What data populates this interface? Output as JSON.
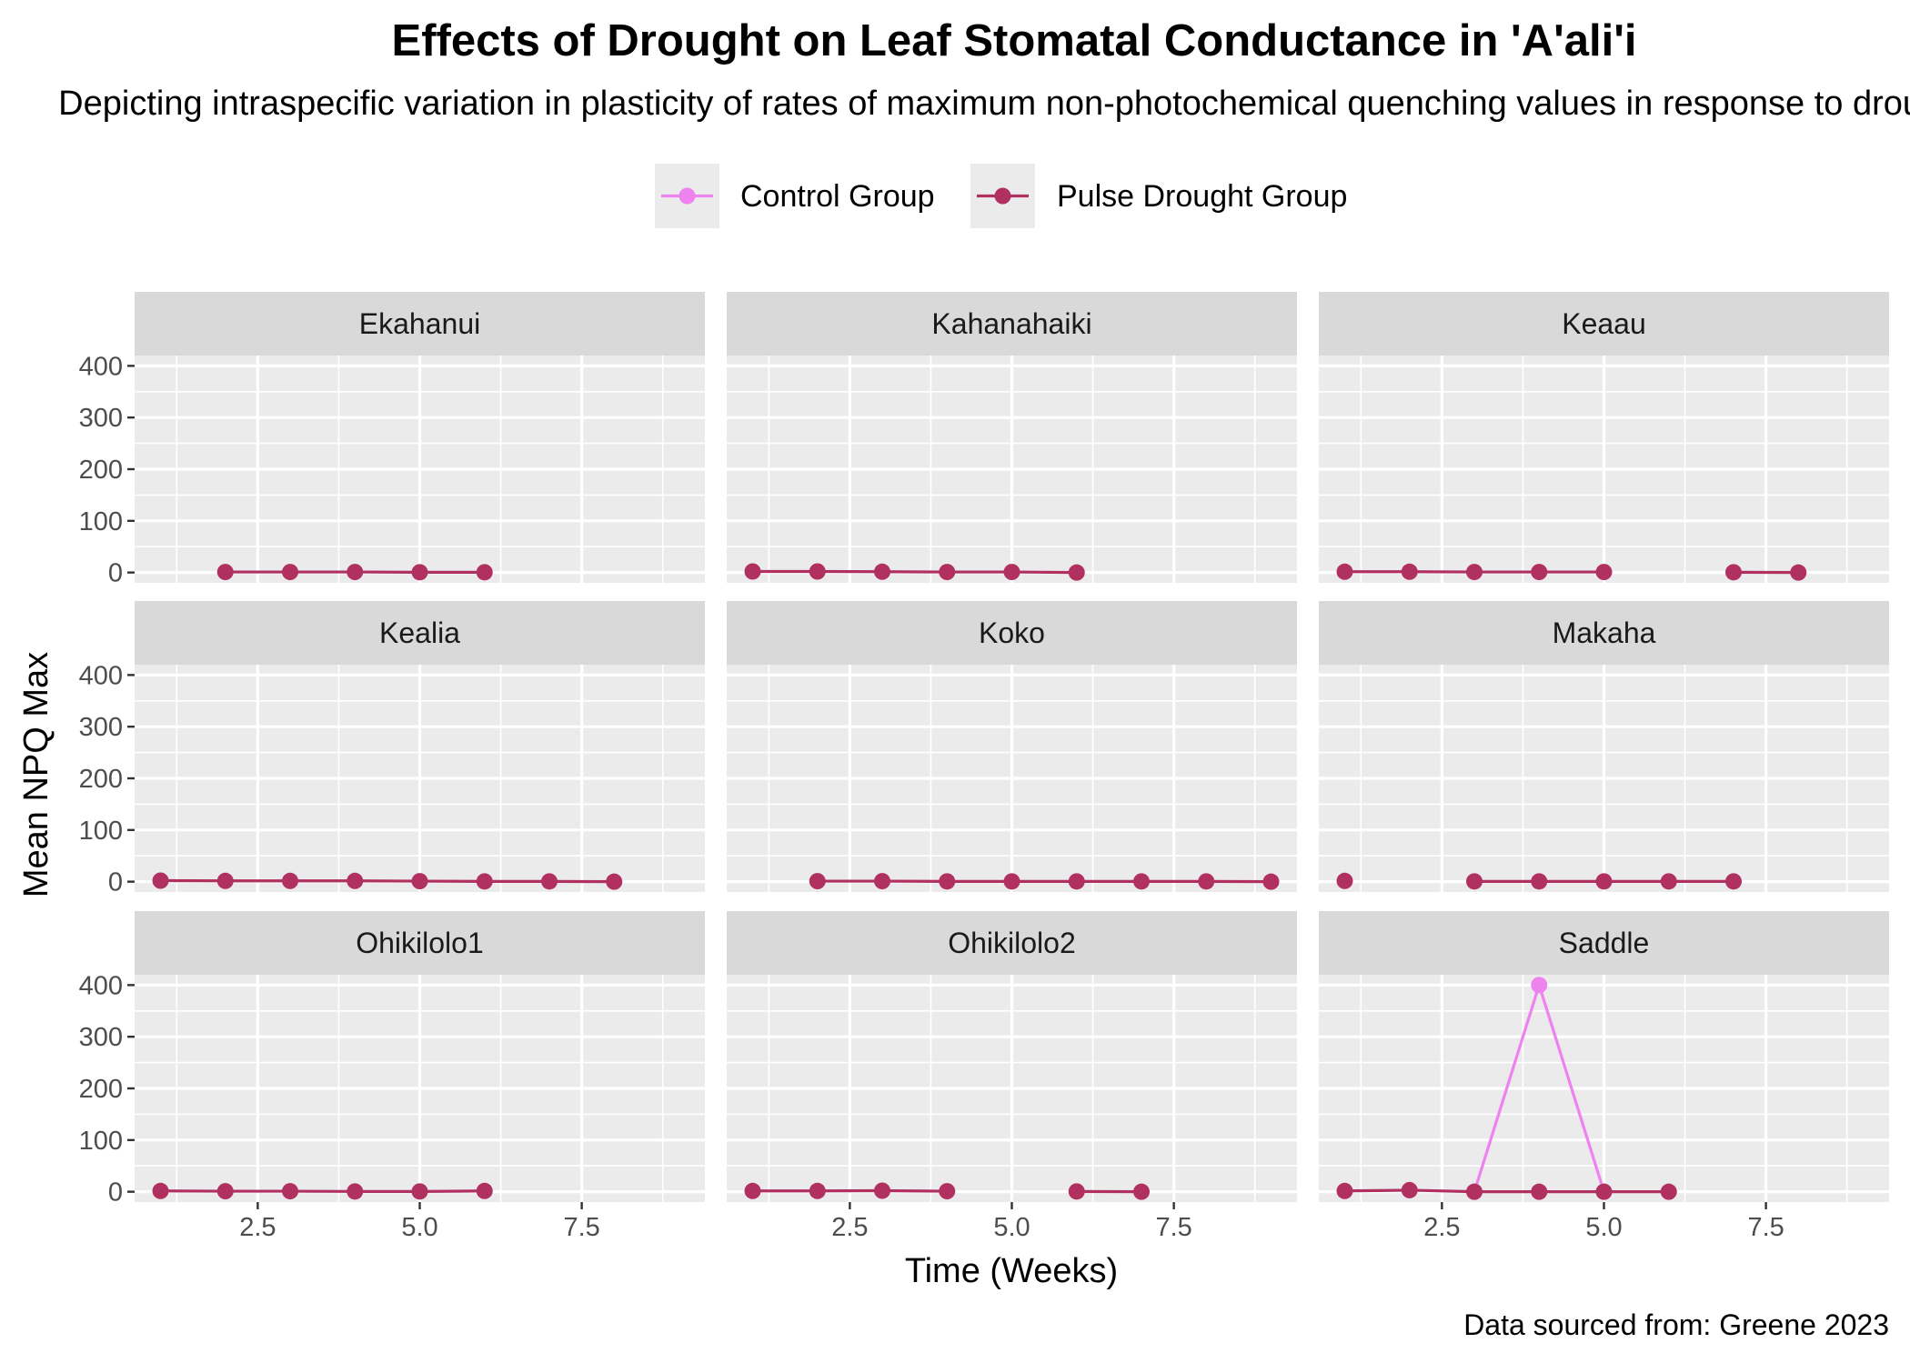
{
  "chart_data": {
    "type": "line",
    "title": "Effects of Drought on Leaf Stomatal Conductance in 'A'ali'i",
    "subtitle": "Depicting intraspecific variation in plasticity of rates of maximum non-photochemical quenching values in response to drought",
    "xlabel": "Time (Weeks)",
    "ylabel": "Mean NPQ Max",
    "caption": "Data sourced from: Greene 2023",
    "xlim": [
      0.6,
      9.4
    ],
    "ylim": [
      -20,
      420
    ],
    "x_ticks": [
      "2.5",
      "5.0",
      "7.5"
    ],
    "y_ticks": [
      "0",
      "100",
      "200",
      "300",
      "400"
    ],
    "legend_position": "top",
    "grid": true,
    "colors": {
      "Control Group": "#ee82ee",
      "Pulse Drought Group": "#b03060"
    },
    "series": [
      {
        "name": "Control Group"
      },
      {
        "name": "Pulse Drought Group"
      }
    ],
    "panels": [
      {
        "name": "Ekahanui",
        "series": [
          {
            "name": "Pulse Drought Group",
            "x": [
              2,
              3,
              4,
              5,
              6
            ],
            "y": [
              1,
              1,
              1,
              0.5,
              0.5
            ]
          }
        ]
      },
      {
        "name": "Kahanahaiki",
        "series": [
          {
            "name": "Pulse Drought Group",
            "x": [
              1,
              2,
              3,
              4,
              5,
              6
            ],
            "y": [
              2,
              2,
              1.5,
              1,
              1,
              0
            ]
          }
        ]
      },
      {
        "name": "Keaau",
        "series": [
          {
            "name": "Pulse Drought Group",
            "x": [
              1,
              2,
              3,
              4,
              5,
              null,
              7,
              8
            ],
            "y": [
              1.5,
              1.5,
              1,
              1,
              1,
              null,
              0.5,
              0
            ]
          }
        ]
      },
      {
        "name": "Kealia",
        "series": [
          {
            "name": "Pulse Drought Group",
            "x": [
              1,
              2,
              3,
              4,
              5,
              6,
              7,
              8
            ],
            "y": [
              2,
              1.5,
              1.5,
              1.5,
              1,
              0.5,
              0.5,
              0
            ]
          }
        ]
      },
      {
        "name": "Koko",
        "series": [
          {
            "name": "Pulse Drought Group",
            "x": [
              2,
              3,
              4,
              5,
              6,
              7,
              8,
              9
            ],
            "y": [
              1,
              1,
              0.5,
              0.5,
              0.5,
              0.5,
              0.5,
              0
            ]
          }
        ]
      },
      {
        "name": "Makaha",
        "series": [
          {
            "name": "Pulse Drought Group",
            "x": [
              1,
              null,
              3,
              4,
              5,
              6,
              7
            ],
            "y": [
              1.5,
              null,
              0.5,
              0.5,
              0.5,
              0.5,
              0.5
            ]
          }
        ]
      },
      {
        "name": "Ohikilolo1",
        "series": [
          {
            "name": "Pulse Drought Group",
            "x": [
              1,
              2,
              3,
              4,
              5,
              6
            ],
            "y": [
              1.5,
              1,
              1,
              0.5,
              0.5,
              1.5
            ]
          }
        ]
      },
      {
        "name": "Ohikilolo2",
        "series": [
          {
            "name": "Pulse Drought Group",
            "x": [
              1,
              2,
              3,
              4,
              null,
              6,
              7
            ],
            "y": [
              1.5,
              1.5,
              2,
              1,
              null,
              0.5,
              0
            ]
          }
        ]
      },
      {
        "name": "Saddle",
        "series": [
          {
            "name": "Control Group",
            "x": [
              3,
              4,
              5
            ],
            "y": [
              0,
              400,
              0
            ]
          },
          {
            "name": "Pulse Drought Group",
            "x": [
              1,
              2,
              3,
              4,
              5,
              6
            ],
            "y": [
              1.5,
              3,
              0,
              0,
              0,
              0
            ]
          }
        ]
      }
    ]
  }
}
